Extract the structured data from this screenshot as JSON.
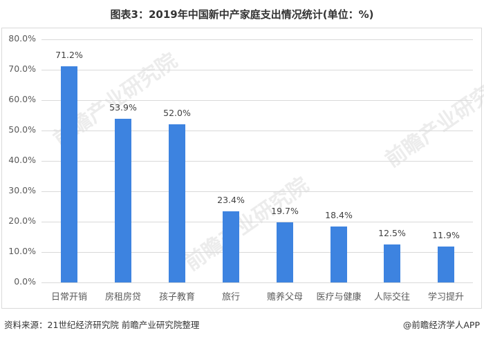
{
  "title": "图表3：2019年中国新中产家庭支出情况统计(单位：%)",
  "footer": {
    "source": "资料来源：21世纪经济研究院 前瞻产业研究院整理",
    "credit": "@前瞻经济学人APP"
  },
  "watermark": "前瞻产业研究院",
  "colors": {
    "bar": "#3d83e0",
    "grid": "#d9d9d9",
    "text": "#595959"
  },
  "chart_data": {
    "type": "bar",
    "title": "图表3：2019年中国新中产家庭支出情况统计(单位：%)",
    "xlabel": "",
    "ylabel": "",
    "categories": [
      "日常开销",
      "房租房贷",
      "孩子教育",
      "旅行",
      "赡养父母",
      "医疗与健康",
      "人际交往",
      "学习提升"
    ],
    "values": [
      71.2,
      53.9,
      52.0,
      23.4,
      19.7,
      18.4,
      12.5,
      11.9
    ],
    "value_labels": [
      "71.2%",
      "53.9%",
      "52.0%",
      "23.4%",
      "19.7%",
      "18.4%",
      "12.5%",
      "11.9%"
    ],
    "ylim": [
      0,
      80
    ],
    "yticks": [
      "0.0%",
      "10.0%",
      "20.0%",
      "30.0%",
      "40.0%",
      "50.0%",
      "60.0%",
      "70.0%",
      "80.0%"
    ],
    "grid": true,
    "legend": null
  }
}
